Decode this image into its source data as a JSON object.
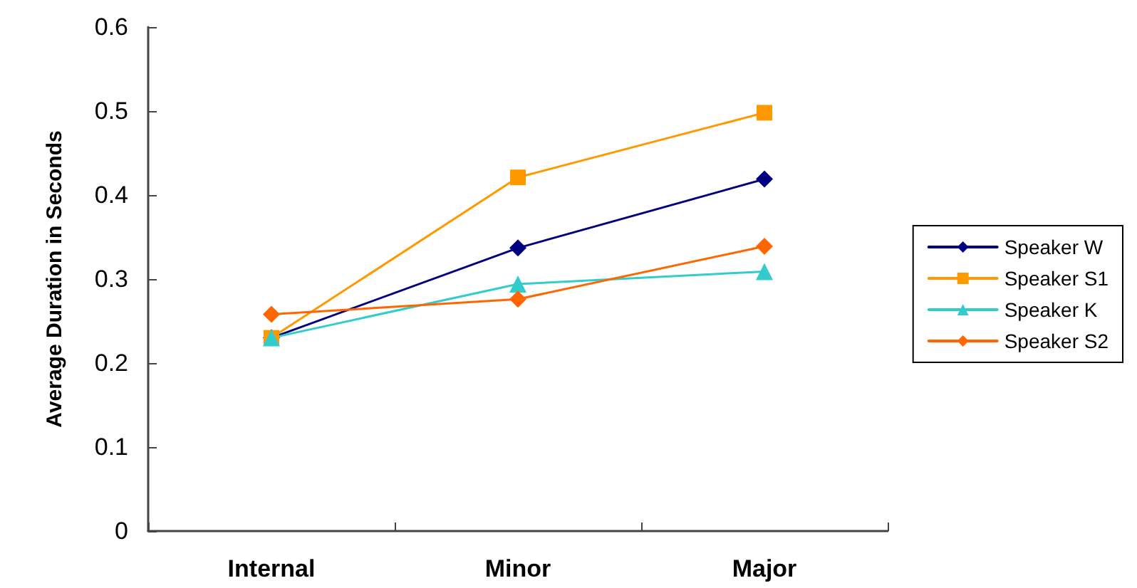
{
  "chart_data": {
    "type": "line",
    "ylabel": "Average Duration in Seconds",
    "categories": [
      "Internal",
      "Minor",
      "Major"
    ],
    "series": [
      {
        "name": "Speaker W",
        "color": "#000080",
        "marker": "diamond",
        "values": [
          0.23,
          0.337,
          0.419
        ]
      },
      {
        "name": "Speaker S1",
        "color": "#ff9900",
        "marker": "square",
        "values": [
          0.23,
          0.421,
          0.498
        ]
      },
      {
        "name": "Speaker K",
        "color": "#33cccc",
        "marker": "triangle",
        "values": [
          0.23,
          0.294,
          0.309
        ]
      },
      {
        "name": "Speaker S2",
        "color": "#ff6600",
        "marker": "diamond",
        "values": [
          0.258,
          0.276,
          0.339
        ]
      }
    ],
    "ylim": [
      0,
      0.6
    ],
    "yticks": [
      0,
      0.1,
      0.2,
      0.3,
      0.4,
      0.5,
      0.6
    ],
    "grid": false,
    "legend": "right"
  }
}
